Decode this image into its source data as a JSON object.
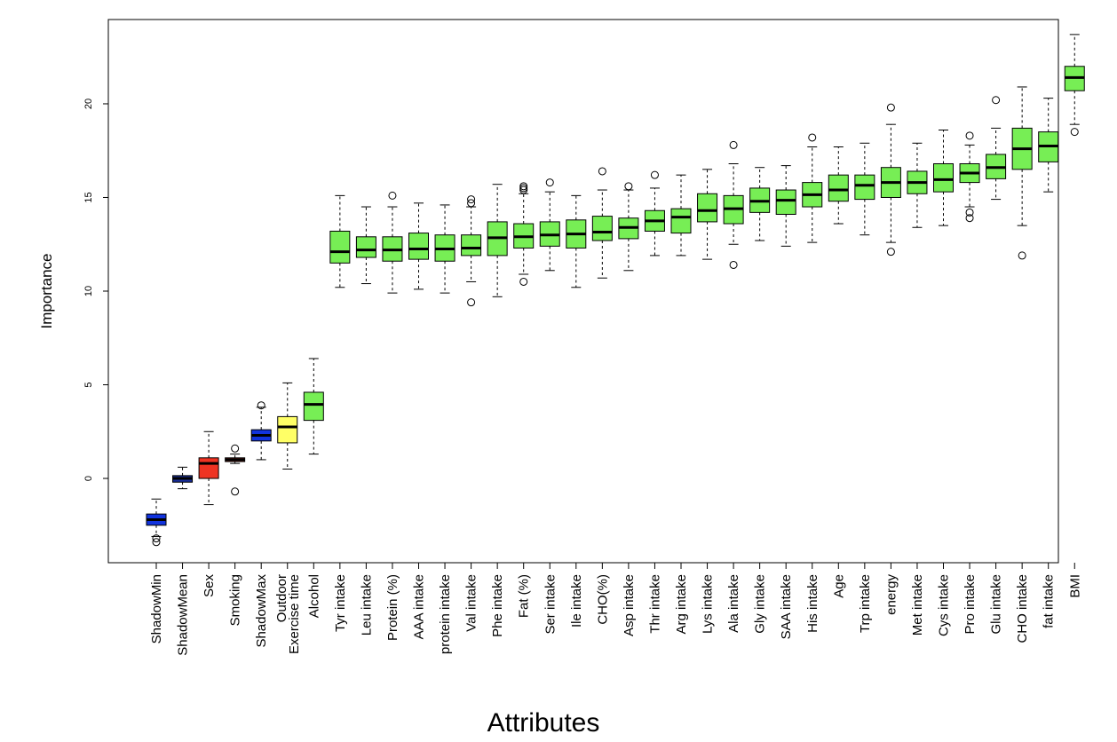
{
  "chart_data": {
    "type": "boxplot",
    "xlabel": "Attributes",
    "ylabel": "Importance",
    "ylim": [
      -4.5,
      24.5
    ],
    "yticks": [
      0,
      5,
      10,
      15,
      20
    ],
    "grid": false,
    "colors": {
      "shadow": "#1133dd",
      "shadow_mean": "#1a2f9c",
      "rejected": "#ee3322",
      "tentative": "#ffff66",
      "confirmed": "#77ee55"
    },
    "series": [
      {
        "name": "ShadowMin",
        "group": "shadow",
        "whisker_low": -3.1,
        "q1": -2.5,
        "median": -2.2,
        "q3": -1.9,
        "whisker_high": -1.1,
        "outliers": [
          -3.4,
          -3.2
        ]
      },
      {
        "name": "ShadowMean",
        "group": "shadow_mean",
        "whisker_low": -0.55,
        "q1": -0.2,
        "median": 0.0,
        "q3": 0.15,
        "whisker_high": 0.6,
        "outliers": []
      },
      {
        "name": "Sex",
        "group": "rejected",
        "whisker_low": -1.4,
        "q1": 0.0,
        "median": 0.8,
        "q3": 1.1,
        "whisker_high": 2.5,
        "outliers": []
      },
      {
        "name": "Smoking",
        "group": "rejected",
        "whisker_low": 0.8,
        "q1": 0.9,
        "median": 1.0,
        "q3": 1.1,
        "whisker_high": 1.3,
        "outliers": [
          1.6,
          -0.7
        ]
      },
      {
        "name": "ShadowMax",
        "group": "shadow",
        "whisker_low": 1.0,
        "q1": 2.0,
        "median": 2.3,
        "q3": 2.6,
        "whisker_high": 3.8,
        "outliers": [
          3.9
        ]
      },
      {
        "name": "Outdoor\nExercise time",
        "group": "tentative",
        "whisker_low": 0.5,
        "q1": 1.9,
        "median": 2.75,
        "q3": 3.3,
        "whisker_high": 5.1,
        "outliers": []
      },
      {
        "name": "Alcohol",
        "group": "confirmed",
        "whisker_low": 1.3,
        "q1": 3.1,
        "median": 3.95,
        "q3": 4.6,
        "whisker_high": 6.4,
        "outliers": []
      },
      {
        "name": "Tyr intake",
        "group": "confirmed",
        "whisker_low": 10.2,
        "q1": 11.5,
        "median": 12.1,
        "q3": 13.2,
        "whisker_high": 15.1,
        "outliers": []
      },
      {
        "name": "Leu intake",
        "group": "confirmed",
        "whisker_low": 10.4,
        "q1": 11.8,
        "median": 12.2,
        "q3": 12.9,
        "whisker_high": 14.5,
        "outliers": []
      },
      {
        "name": "Protein (%)",
        "group": "confirmed",
        "whisker_low": 9.9,
        "q1": 11.6,
        "median": 12.2,
        "q3": 12.9,
        "whisker_high": 14.5,
        "outliers": [
          15.1
        ]
      },
      {
        "name": "AAA intake",
        "group": "confirmed",
        "whisker_low": 10.1,
        "q1": 11.7,
        "median": 12.25,
        "q3": 13.1,
        "whisker_high": 14.7,
        "outliers": []
      },
      {
        "name": "protein intake",
        "group": "confirmed",
        "whisker_low": 9.9,
        "q1": 11.6,
        "median": 12.25,
        "q3": 13.0,
        "whisker_high": 14.6,
        "outliers": []
      },
      {
        "name": "Val intake",
        "group": "confirmed",
        "whisker_low": 10.5,
        "q1": 11.9,
        "median": 12.3,
        "q3": 13.0,
        "whisker_high": 14.5,
        "outliers": [
          14.7,
          14.9,
          9.4
        ]
      },
      {
        "name": "Phe intake",
        "group": "confirmed",
        "whisker_low": 9.7,
        "q1": 11.9,
        "median": 12.85,
        "q3": 13.7,
        "whisker_high": 15.7,
        "outliers": []
      },
      {
        "name": "Fat (%)",
        "group": "confirmed",
        "whisker_low": 10.9,
        "q1": 12.3,
        "median": 12.9,
        "q3": 13.6,
        "whisker_high": 15.2,
        "outliers": [
          15.4,
          15.5,
          15.6,
          10.5
        ]
      },
      {
        "name": "Ser intake",
        "group": "confirmed",
        "whisker_low": 11.1,
        "q1": 12.4,
        "median": 13.0,
        "q3": 13.7,
        "whisker_high": 15.3,
        "outliers": [
          15.8
        ]
      },
      {
        "name": "Ile intake",
        "group": "confirmed",
        "whisker_low": 10.2,
        "q1": 12.3,
        "median": 13.05,
        "q3": 13.8,
        "whisker_high": 15.1,
        "outliers": []
      },
      {
        "name": "CHO(%)",
        "group": "confirmed",
        "whisker_low": 10.7,
        "q1": 12.7,
        "median": 13.15,
        "q3": 14.0,
        "whisker_high": 15.4,
        "outliers": [
          16.4
        ]
      },
      {
        "name": "Asp intake",
        "group": "confirmed",
        "whisker_low": 11.1,
        "q1": 12.8,
        "median": 13.4,
        "q3": 13.9,
        "whisker_high": 15.4,
        "outliers": [
          15.6
        ]
      },
      {
        "name": "Thr intake",
        "group": "confirmed",
        "whisker_low": 11.9,
        "q1": 13.2,
        "median": 13.75,
        "q3": 14.3,
        "whisker_high": 15.5,
        "outliers": [
          16.2
        ]
      },
      {
        "name": "Arg intake",
        "group": "confirmed",
        "whisker_low": 11.9,
        "q1": 13.1,
        "median": 13.95,
        "q3": 14.4,
        "whisker_high": 16.2,
        "outliers": []
      },
      {
        "name": "Lys intake",
        "group": "confirmed",
        "whisker_low": 11.7,
        "q1": 13.7,
        "median": 14.3,
        "q3": 15.2,
        "whisker_high": 16.5,
        "outliers": []
      },
      {
        "name": "Ala intake",
        "group": "confirmed",
        "whisker_low": 12.5,
        "q1": 13.6,
        "median": 14.4,
        "q3": 15.1,
        "whisker_high": 16.8,
        "outliers": [
          17.8,
          11.4
        ]
      },
      {
        "name": "Gly intake",
        "group": "confirmed",
        "whisker_low": 12.7,
        "q1": 14.2,
        "median": 14.8,
        "q3": 15.5,
        "whisker_high": 16.6,
        "outliers": []
      },
      {
        "name": "SAA intake",
        "group": "confirmed",
        "whisker_low": 12.4,
        "q1": 14.1,
        "median": 14.85,
        "q3": 15.4,
        "whisker_high": 16.7,
        "outliers": []
      },
      {
        "name": "His intake",
        "group": "confirmed",
        "whisker_low": 12.6,
        "q1": 14.5,
        "median": 15.15,
        "q3": 15.8,
        "whisker_high": 17.7,
        "outliers": [
          18.2
        ]
      },
      {
        "name": "Age",
        "group": "confirmed",
        "whisker_low": 13.6,
        "q1": 14.8,
        "median": 15.4,
        "q3": 16.2,
        "whisker_high": 17.7,
        "outliers": []
      },
      {
        "name": "Trp intake",
        "group": "confirmed",
        "whisker_low": 13.0,
        "q1": 14.9,
        "median": 15.65,
        "q3": 16.2,
        "whisker_high": 17.9,
        "outliers": []
      },
      {
        "name": "energy",
        "group": "confirmed",
        "whisker_low": 12.6,
        "q1": 15.0,
        "median": 15.8,
        "q3": 16.6,
        "whisker_high": 18.9,
        "outliers": [
          19.8,
          12.1
        ]
      },
      {
        "name": "Met intake",
        "group": "confirmed",
        "whisker_low": 13.4,
        "q1": 15.2,
        "median": 15.8,
        "q3": 16.4,
        "whisker_high": 17.9,
        "outliers": []
      },
      {
        "name": "Cys intake",
        "group": "confirmed",
        "whisker_low": 13.5,
        "q1": 15.3,
        "median": 15.95,
        "q3": 16.8,
        "whisker_high": 18.6,
        "outliers": []
      },
      {
        "name": "Pro intake",
        "group": "confirmed",
        "whisker_low": 14.5,
        "q1": 15.8,
        "median": 16.3,
        "q3": 16.8,
        "whisker_high": 17.8,
        "outliers": [
          18.3,
          14.2,
          13.9
        ]
      },
      {
        "name": "Glu intake",
        "group": "confirmed",
        "whisker_low": 14.9,
        "q1": 16.0,
        "median": 16.6,
        "q3": 17.3,
        "whisker_high": 18.7,
        "outliers": [
          20.2
        ]
      },
      {
        "name": "CHO intake",
        "group": "confirmed",
        "whisker_low": 13.5,
        "q1": 16.5,
        "median": 17.6,
        "q3": 18.7,
        "whisker_high": 20.9,
        "outliers": [
          11.9
        ]
      },
      {
        "name": "fat intake",
        "group": "confirmed",
        "whisker_low": 15.3,
        "q1": 16.9,
        "median": 17.75,
        "q3": 18.5,
        "whisker_high": 20.3,
        "outliers": []
      },
      {
        "name": "BMI",
        "group": "confirmed",
        "whisker_low": 18.9,
        "q1": 20.7,
        "median": 21.4,
        "q3": 22.0,
        "whisker_high": 23.7,
        "outliers": [
          18.5
        ]
      }
    ]
  }
}
